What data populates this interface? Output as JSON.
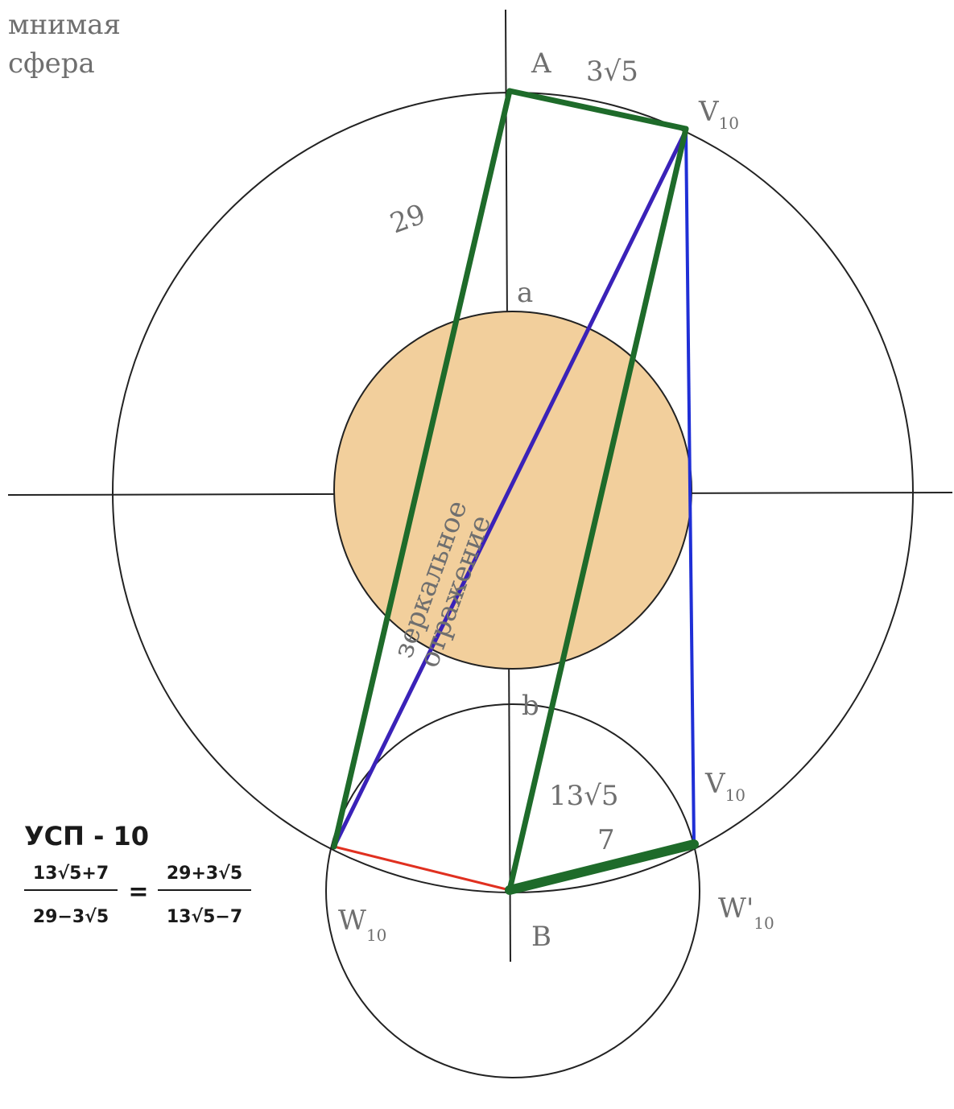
{
  "note_title": {
    "line1": "мнимая",
    "line2": "сфера"
  },
  "labels": {
    "a_top": "A",
    "len_ab": "3√5",
    "v10_top": {
      "base": "V",
      "sub": "10"
    },
    "len_29": "29",
    "point_a": "a",
    "point_b": "b",
    "mirror": {
      "line1": "зеркальное",
      "line2": "отражение"
    },
    "len_13": "13√5",
    "len_7": "7",
    "v10_bottom": {
      "base": "V",
      "sub": "10"
    },
    "w10": {
      "base": "W",
      "sub": "10"
    },
    "b_point": "B",
    "w10_prime": {
      "base": "W'",
      "sub": "10"
    }
  },
  "title": "УСП - 10",
  "formula": {
    "left": {
      "numerator": "13√5+7",
      "denominator": "29−3√5"
    },
    "equals": "=",
    "right": {
      "numerator": "29+3√5",
      "denominator": "13√5−7"
    }
  }
}
